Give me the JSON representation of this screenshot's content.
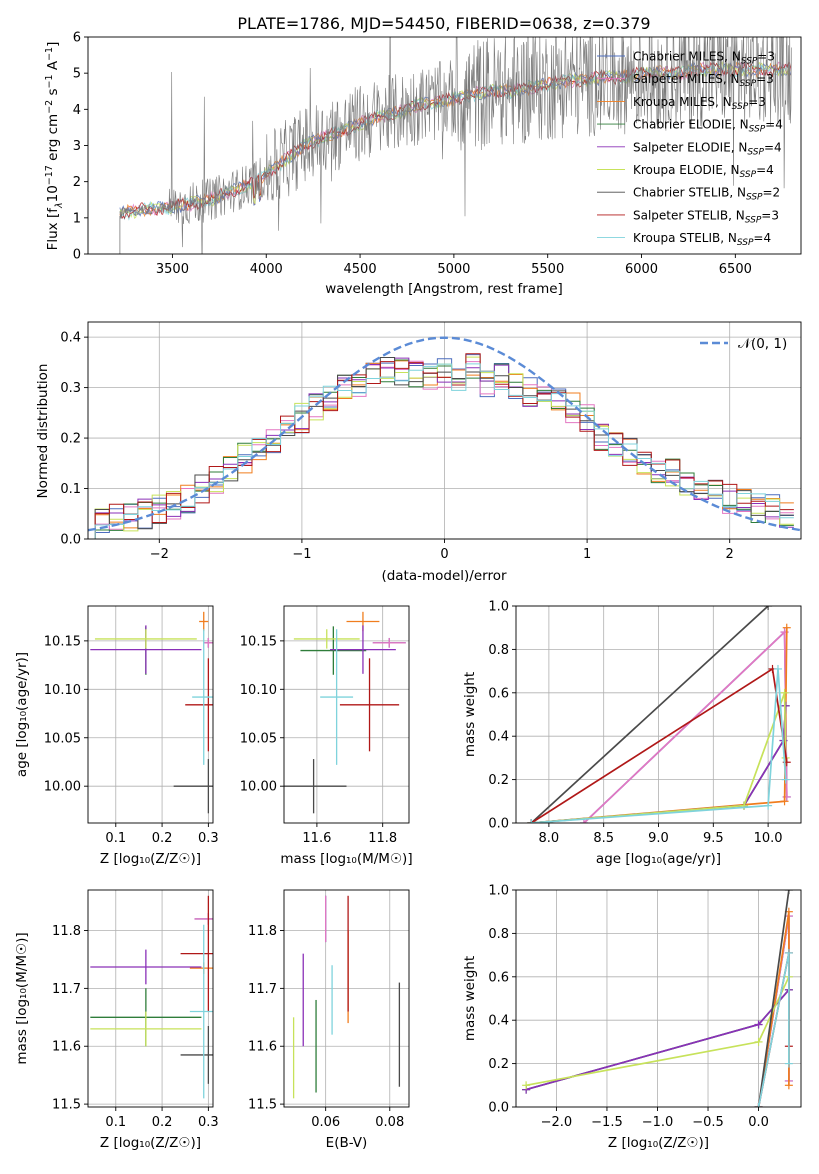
{
  "title": "PLATE=1786, MJD=54450, FIBERID=0638, z=0.379",
  "colors": {
    "Chabrier MILES": "#4c6dbe",
    "Salpeter MILES": "#e377c2",
    "Kroupa MILES": "#f07d1e",
    "Chabrier ELODIE": "#2f7d3a",
    "Salpeter ELODIE": "#8a30b8",
    "Kroupa ELODIE": "#c7e25a",
    "Chabrier STELIB": "#4a4a4a",
    "Salpeter STELIB": "#b01818",
    "Kroupa STELIB": "#7fd3dc",
    "gauss": "#5b8bd6",
    "spectrum": "#7a7a7a"
  },
  "spectrum": {
    "xlabel": "wavelength [Angstrom, rest frame]",
    "ylabel": "Flux [f",
    "ylabel_parts": [
      "Flux [f",
      "λ",
      "10",
      "−17",
      " erg cm",
      "−2",
      " s",
      "−1",
      " A",
      "−1",
      "]"
    ],
    "xticks": [
      "3500",
      "4000",
      "4500",
      "5000",
      "5500",
      "6000",
      "6500"
    ],
    "yticks": [
      "0",
      "1",
      "2",
      "3",
      "4",
      "5",
      "6"
    ],
    "legend": [
      {
        "name": "Chabrier MILES",
        "n": "3"
      },
      {
        "name": "Salpeter MILES",
        "n": "3"
      },
      {
        "name": "Kroupa MILES",
        "n": "3"
      },
      {
        "name": "Chabrier ELODIE",
        "n": "4"
      },
      {
        "name": "Salpeter ELODIE",
        "n": "4"
      },
      {
        "name": "Kroupa ELODIE",
        "n": "4"
      },
      {
        "name": "Chabrier STELIB",
        "n": "2"
      },
      {
        "name": "Salpeter STELIB",
        "n": "3"
      },
      {
        "name": "Kroupa STELIB",
        "n": "4"
      }
    ],
    "nssp_prefix": ", N",
    "nssp_sub": "SSP",
    "nssp_eq": "="
  },
  "histogram": {
    "xlabel": "(data-model)/error",
    "ylabel": "Normed distribution",
    "xticks": [
      "−2",
      "−1",
      "0",
      "1",
      "2"
    ],
    "yticks": [
      "0.0",
      "0.1",
      "0.2",
      "0.3",
      "0.4"
    ],
    "legend_label": "𝒩(0, 1)"
  },
  "panels": {
    "age_vs_Z": {
      "ylabel": "age  [log₁₀(age/yr)]",
      "xlabel": "Z [log₁₀(Z/Z☉)]",
      "xticks": [
        "0.1",
        "0.2",
        "0.3"
      ],
      "yticks": [
        "10.00",
        "10.05",
        "10.10",
        "10.15"
      ]
    },
    "age_vs_mass": {
      "xlabel": "mass [log₁₀(M/M☉)]",
      "xticks": [
        "11.6",
        "11.8"
      ],
      "yticks": [
        "10.00",
        "10.05",
        "10.10",
        "10.15"
      ]
    },
    "mw_vs_age": {
      "ylabel": "mass weight",
      "xlabel": "age  [log₁₀(age/yr)]",
      "xticks": [
        "8.0",
        "8.5",
        "9.0",
        "9.5",
        "10.0"
      ],
      "yticks": [
        "0.0",
        "0.2",
        "0.4",
        "0.6",
        "0.8",
        "1.0"
      ]
    },
    "mass_vs_Z": {
      "ylabel": "mass [log₁₀(M/M☉)]",
      "xlabel": "Z [log₁₀(Z/Z☉)]",
      "xticks": [
        "0.1",
        "0.2",
        "0.3"
      ],
      "yticks": [
        "11.5",
        "11.6",
        "11.7",
        "11.8"
      ]
    },
    "mass_vs_ebv": {
      "xlabel": "E(B-V)",
      "xticks": [
        "0.06",
        "0.08"
      ],
      "yticks": [
        "11.5",
        "11.6",
        "11.7",
        "11.8"
      ]
    },
    "mw_vs_Z": {
      "ylabel": "mass weight",
      "xlabel": "Z [log₁₀(Z/Z☉)]",
      "xticks": [
        "−2.0",
        "−1.5",
        "−1.0",
        "−0.5",
        "0.0"
      ],
      "yticks": [
        "0.0",
        "0.2",
        "0.4",
        "0.6",
        "0.8",
        "1.0"
      ]
    }
  },
  "chart_data": [
    {
      "type": "line",
      "name": "spectrum",
      "title": "PLATE=1786, MJD=54450, FIBERID=0638, z=0.379",
      "xlabel": "wavelength [Angstrom, rest frame]",
      "ylabel": "Flux [fλ10−17 erg cm−2 s−1 A−1]",
      "xlim": [
        3050,
        6850
      ],
      "ylim": [
        0,
        6
      ],
      "x": [
        3220,
        3300,
        3400,
        3500,
        3600,
        3700,
        3800,
        3900,
        4000,
        4100,
        4200,
        4300,
        4400,
        4500,
        4600,
        4700,
        4800,
        4900,
        5000,
        5100,
        5200,
        5300,
        5400,
        5500,
        5600,
        5700,
        5800,
        5900,
        6000,
        6100,
        6200,
        6300,
        6400,
        6500,
        6600,
        6700,
        6800
      ],
      "series": [
        {
          "values": [
            1.1,
            1.2,
            1.25,
            1.3,
            1.4,
            1.5,
            1.7,
            1.9,
            2.2,
            2.6,
            3.0,
            3.2,
            3.4,
            3.6,
            3.8,
            3.9,
            4.1,
            4.2,
            4.3,
            4.4,
            4.5,
            4.5,
            4.6,
            4.7,
            4.8,
            4.8,
            4.9,
            4.9,
            5.0,
            5.0,
            5.0,
            5.1,
            5.1,
            5.1,
            5.1,
            5.1,
            5.1
          ]
        }
      ],
      "grid": false,
      "legend_position": "upper-right"
    },
    {
      "type": "bar",
      "name": "residual histogram",
      "xlabel": "(data-model)/error",
      "ylabel": "Normed distribution",
      "xlim": [
        -2.5,
        2.5
      ],
      "ylim": [
        0,
        0.43
      ],
      "bin_centers": [
        -2.4,
        -2.3,
        -2.2,
        -2.1,
        -2.0,
        -1.9,
        -1.8,
        -1.7,
        -1.6,
        -1.5,
        -1.4,
        -1.3,
        -1.2,
        -1.1,
        -1.0,
        -0.9,
        -0.8,
        -0.7,
        -0.6,
        -0.5,
        -0.4,
        -0.3,
        -0.2,
        -0.1,
        0.0,
        0.1,
        0.2,
        0.3,
        0.4,
        0.5,
        0.6,
        0.7,
        0.8,
        0.9,
        1.0,
        1.1,
        1.2,
        1.3,
        1.4,
        1.5,
        1.6,
        1.7,
        1.8,
        1.9,
        2.0,
        2.1,
        2.2,
        2.3,
        2.4
      ],
      "series": [
        {
          "values": [
            0.035,
            0.04,
            0.045,
            0.05,
            0.06,
            0.065,
            0.08,
            0.1,
            0.12,
            0.14,
            0.16,
            0.18,
            0.2,
            0.22,
            0.24,
            0.26,
            0.28,
            0.3,
            0.31,
            0.32,
            0.34,
            0.33,
            0.33,
            0.32,
            0.33,
            0.32,
            0.34,
            0.31,
            0.32,
            0.3,
            0.29,
            0.29,
            0.27,
            0.26,
            0.24,
            0.2,
            0.19,
            0.17,
            0.15,
            0.14,
            0.13,
            0.11,
            0.1,
            0.09,
            0.08,
            0.07,
            0.06,
            0.06,
            0.05
          ]
        }
      ],
      "reference_curve": "N(0,1)",
      "grid": true,
      "legend_position": "upper-right"
    },
    {
      "type": "scatter",
      "name": "age vs Z",
      "xlim": [
        0.04,
        0.31
      ],
      "ylim": [
        9.962,
        10.186
      ],
      "points": [
        {
          "s": "Chabrier MILES",
          "x": 0.3,
          "y": 10.148,
          "xerr": 0.01,
          "yerr": 0.005
        },
        {
          "s": "Salpeter MILES",
          "x": 0.3,
          "y": 10.148,
          "xerr": 0.01,
          "yerr": 0.005
        },
        {
          "s": "Kroupa MILES",
          "x": 0.29,
          "y": 10.17,
          "xerr": 0.01,
          "yerr": 0.01
        },
        {
          "s": "Chabrier ELODIE",
          "x": 0.165,
          "y": 10.14,
          "xerr": 0.0,
          "yerr": 0.025
        },
        {
          "s": "Salpeter ELODIE",
          "x": 0.165,
          "y": 10.141,
          "xerr": 0.12,
          "yerr": 0.025
        },
        {
          "s": "Kroupa ELODIE",
          "x": 0.165,
          "y": 10.152,
          "xerr": 0.11,
          "yerr": 0.01
        },
        {
          "s": "Chabrier STELIB",
          "x": 0.3,
          "y": 10.0,
          "xerr": 0.075,
          "yerr": 0.028
        },
        {
          "s": "Salpeter STELIB",
          "x": 0.3,
          "y": 10.084,
          "xerr": 0.05,
          "yerr": 0.048
        },
        {
          "s": "Kroupa STELIB",
          "x": 0.29,
          "y": 10.092,
          "xerr": 0.025,
          "yerr": 0.07
        }
      ]
    },
    {
      "type": "scatter",
      "name": "age vs mass",
      "xlim": [
        11.5,
        11.88
      ],
      "ylim": [
        9.962,
        10.186
      ],
      "points": [
        {
          "s": "Chabrier MILES",
          "x": 11.82,
          "y": 10.148,
          "xerr": 0.05,
          "yerr": 0.005
        },
        {
          "s": "Salpeter MILES",
          "x": 11.82,
          "y": 10.148,
          "xerr": 0.05,
          "yerr": 0.005
        },
        {
          "s": "Kroupa MILES",
          "x": 11.74,
          "y": 10.17,
          "xerr": 0.05,
          "yerr": 0.01
        },
        {
          "s": "Chabrier ELODIE",
          "x": 11.65,
          "y": 10.14,
          "xerr": 0.1,
          "yerr": 0.025
        },
        {
          "s": "Salpeter ELODIE",
          "x": 11.74,
          "y": 10.141,
          "xerr": 0.1,
          "yerr": 0.025
        },
        {
          "s": "Kroupa ELODIE",
          "x": 11.63,
          "y": 10.152,
          "xerr": 0.1,
          "yerr": 0.01
        },
        {
          "s": "Chabrier STELIB",
          "x": 11.59,
          "y": 10.0,
          "xerr": 0.1,
          "yerr": 0.028
        },
        {
          "s": "Salpeter STELIB",
          "x": 11.76,
          "y": 10.084,
          "xerr": 0.09,
          "yerr": 0.048
        },
        {
          "s": "Kroupa STELIB",
          "x": 11.66,
          "y": 10.092,
          "xerr": 0.05,
          "yerr": 0.07
        }
      ]
    },
    {
      "type": "line",
      "name": "mass weight vs age",
      "xlim": [
        7.7,
        10.3
      ],
      "ylim": [
        0,
        1
      ],
      "series": [
        {
          "s": "Chabrier MILES",
          "x": [
            8.32,
            10.15,
            10.17
          ],
          "y": [
            0.0,
            0.88,
            0.12
          ]
        },
        {
          "s": "Salpeter MILES",
          "x": [
            8.32,
            10.15,
            10.17
          ],
          "y": [
            0.0,
            0.88,
            0.12
          ]
        },
        {
          "s": "Kroupa MILES",
          "x": [
            7.84,
            10.15,
            10.17
          ],
          "y": [
            0.0,
            0.1,
            0.9
          ]
        },
        {
          "s": "Chabrier ELODIE",
          "x": [
            7.84,
            9.78,
            10.14,
            10.16
          ],
          "y": [
            0.0,
            0.08,
            0.38,
            0.54
          ]
        },
        {
          "s": "Salpeter ELODIE",
          "x": [
            7.84,
            9.78,
            10.14,
            10.16
          ],
          "y": [
            0.0,
            0.08,
            0.38,
            0.54
          ]
        },
        {
          "s": "Kroupa ELODIE",
          "x": [
            7.84,
            9.78,
            10.15,
            10.16
          ],
          "y": [
            0.0,
            0.08,
            0.6,
            0.3
          ]
        },
        {
          "s": "Chabrier STELIB",
          "x": [
            7.84,
            10.0
          ],
          "y": [
            0.0,
            1.0
          ]
        },
        {
          "s": "Salpeter STELIB",
          "x": [
            7.84,
            10.04,
            10.17
          ],
          "y": [
            0.0,
            0.71,
            0.28
          ]
        },
        {
          "s": "Kroupa STELIB",
          "x": [
            7.84,
            10.0,
            10.09,
            10.16
          ],
          "y": [
            0.0,
            0.08,
            0.71,
            0.2
          ]
        }
      ]
    },
    {
      "type": "scatter",
      "name": "mass vs Z",
      "xlim": [
        0.04,
        0.31
      ],
      "ylim": [
        11.495,
        11.87
      ],
      "points": [
        {
          "s": "Chabrier MILES",
          "x": 0.3,
          "y": 11.82,
          "xerr": 0.03,
          "yerr": 0.01
        },
        {
          "s": "Salpeter MILES",
          "x": 0.3,
          "y": 11.82,
          "xerr": 0.03,
          "yerr": 0.01
        },
        {
          "s": "Kroupa MILES",
          "x": 0.29,
          "y": 11.735,
          "xerr": 0.03,
          "yerr": 0.01
        },
        {
          "s": "Chabrier ELODIE",
          "x": 0.165,
          "y": 11.65,
          "xerr": 0.12,
          "yerr": 0.05
        },
        {
          "s": "Salpeter ELODIE",
          "x": 0.165,
          "y": 11.737,
          "xerr": 0.12,
          "yerr": 0.03
        },
        {
          "s": "Kroupa ELODIE",
          "x": 0.165,
          "y": 11.63,
          "xerr": 0.12,
          "yerr": 0.03
        },
        {
          "s": "Chabrier STELIB",
          "x": 0.3,
          "y": 11.585,
          "xerr": 0.06,
          "yerr": 0.05
        },
        {
          "s": "Salpeter STELIB",
          "x": 0.3,
          "y": 11.76,
          "xerr": 0.06,
          "yerr": 0.1
        },
        {
          "s": "Kroupa STELIB",
          "x": 0.29,
          "y": 11.66,
          "xerr": 0.03,
          "yerr": 0.15
        }
      ]
    },
    {
      "type": "scatter",
      "name": "mass vs E(B-V)",
      "xlim": [
        0.047,
        0.086
      ],
      "ylim": [
        11.495,
        11.87
      ],
      "points": [
        {
          "s": "Chabrier MILES",
          "x": 0.06,
          "y": 11.82,
          "yerr": 0.04
        },
        {
          "s": "Salpeter MILES",
          "x": 0.06,
          "y": 11.82,
          "yerr": 0.04
        },
        {
          "s": "Kroupa MILES",
          "x": 0.067,
          "y": 11.72,
          "yerr": 0.08
        },
        {
          "s": "Chabrier ELODIE",
          "x": 0.057,
          "y": 11.6,
          "yerr": 0.08
        },
        {
          "s": "Salpeter ELODIE",
          "x": 0.053,
          "y": 11.68,
          "yerr": 0.08
        },
        {
          "s": "Kroupa ELODIE",
          "x": 0.05,
          "y": 11.58,
          "yerr": 0.07
        },
        {
          "s": "Chabrier STELIB",
          "x": 0.083,
          "y": 11.62,
          "yerr": 0.09
        },
        {
          "s": "Salpeter STELIB",
          "x": 0.067,
          "y": 11.76,
          "yerr": 0.1
        },
        {
          "s": "Kroupa STELIB",
          "x": 0.062,
          "y": 11.68,
          "yerr": 0.06
        }
      ]
    },
    {
      "type": "line",
      "name": "mass weight vs Z",
      "xlim": [
        -2.4,
        0.42
      ],
      "ylim": [
        0,
        1
      ],
      "series": [
        {
          "s": "Chabrier MILES",
          "x": [
            0.0,
            0.3,
            0.3
          ],
          "y": [
            0.0,
            0.88,
            0.12
          ]
        },
        {
          "s": "Salpeter MILES",
          "x": [
            0.0,
            0.3,
            0.3
          ],
          "y": [
            0.0,
            0.88,
            0.12
          ]
        },
        {
          "s": "Kroupa MILES",
          "x": [
            0.0,
            0.3,
            0.3
          ],
          "y": [
            0.0,
            0.9,
            0.1
          ]
        },
        {
          "s": "Chabrier ELODIE",
          "x": [
            -2.3,
            0.0,
            0.3
          ],
          "y": [
            0.08,
            0.38,
            0.54
          ]
        },
        {
          "s": "Salpeter ELODIE",
          "x": [
            -2.3,
            0.0,
            0.3
          ],
          "y": [
            0.08,
            0.38,
            0.54
          ]
        },
        {
          "s": "Kroupa ELODIE",
          "x": [
            -2.3,
            0.0,
            0.3
          ],
          "y": [
            0.1,
            0.3,
            0.6
          ]
        },
        {
          "s": "Chabrier STELIB",
          "x": [
            0.0,
            0.3
          ],
          "y": [
            0.0,
            1.0
          ]
        },
        {
          "s": "Salpeter STELIB",
          "x": [
            0.0,
            0.3,
            0.3
          ],
          "y": [
            0.0,
            0.71,
            0.28
          ]
        },
        {
          "s": "Kroupa STELIB",
          "x": [
            0.0,
            0.3,
            0.3
          ],
          "y": [
            0.0,
            0.71,
            0.2
          ]
        }
      ]
    }
  ]
}
